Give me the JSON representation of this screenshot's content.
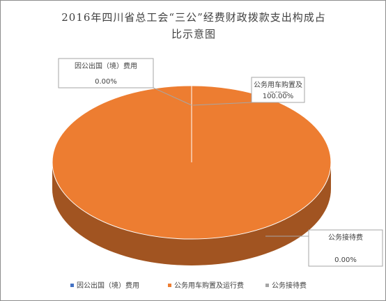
{
  "chart_data": {
    "type": "pie3d",
    "title": "2016年四川省总工会“三公”经费财政拨款支出构成占比示意图",
    "categories": [
      "因公出国（境）费用",
      "公务用车购置及运行费",
      "公务接待费"
    ],
    "values": [
      0,
      100,
      0
    ],
    "value_labels": [
      "0.00%",
      "100.00%",
      "0.00%"
    ],
    "colors": [
      "#4472c4",
      "#ed7d31",
      "#a5a5a5"
    ],
    "legend": "bottom"
  }
}
